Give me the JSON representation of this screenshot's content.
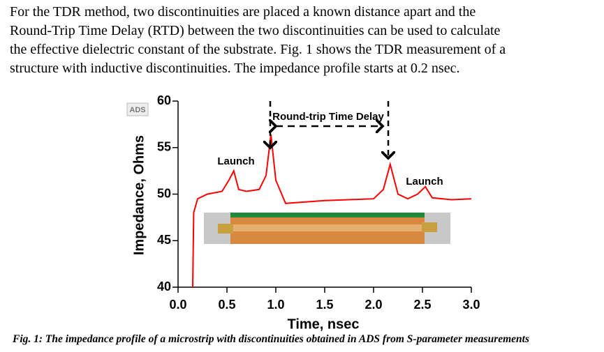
{
  "paragraph": [
    "For the TDR method, two discontinuities are placed a known distance apart and the",
    "Round-Trip Time Delay (RTD) between the two discontinuities can be used to calculate",
    "the effective dielectric constant of the substrate. Fig. 1 shows the TDR measurement of a",
    "structure with inductive discontinuities. The impedance profile starts at 0.2 nsec."
  ],
  "chart_data": {
    "type": "line",
    "xlabel": "Time, nsec",
    "ylabel": "Impedance, Ohms",
    "annotations": [
      "ADS",
      "Launch",
      "Launch",
      "Round-trip Time Delay"
    ],
    "x": [
      0.15,
      0.16,
      0.2,
      0.3,
      0.45,
      0.52,
      0.57,
      0.62,
      0.7,
      0.83,
      0.9,
      0.95,
      1.0,
      1.1,
      1.5,
      2.0,
      2.1,
      2.17,
      2.25,
      2.35,
      2.45,
      2.53,
      2.6,
      2.8,
      3.0
    ],
    "values": [
      40,
      48,
      49.5,
      50,
      50.3,
      51.5,
      52.5,
      50.5,
      50.3,
      50.5,
      52,
      56.4,
      51.5,
      49,
      49.3,
      49.5,
      50.5,
      53.2,
      50,
      49.5,
      50,
      50.8,
      49.6,
      49.4,
      49.5
    ],
    "color": "#ff0000",
    "xlim": [
      0,
      3
    ],
    "ylim": [
      40,
      60
    ],
    "xticks": [
      {
        "value": 0,
        "label": "0.0"
      },
      0.5,
      {
        "value": 1,
        "label": "1.0"
      },
      1.5,
      {
        "value": 2,
        "label": "2.0"
      },
      2.5,
      {
        "value": 3,
        "label": "3.0"
      }
    ],
    "yticks": [
      40,
      45,
      50,
      55,
      60
    ]
  },
  "caption": "Fig. 1: The impedance profile of a microstrip with discontinuities obtained in ADS from S-parameter measurements"
}
